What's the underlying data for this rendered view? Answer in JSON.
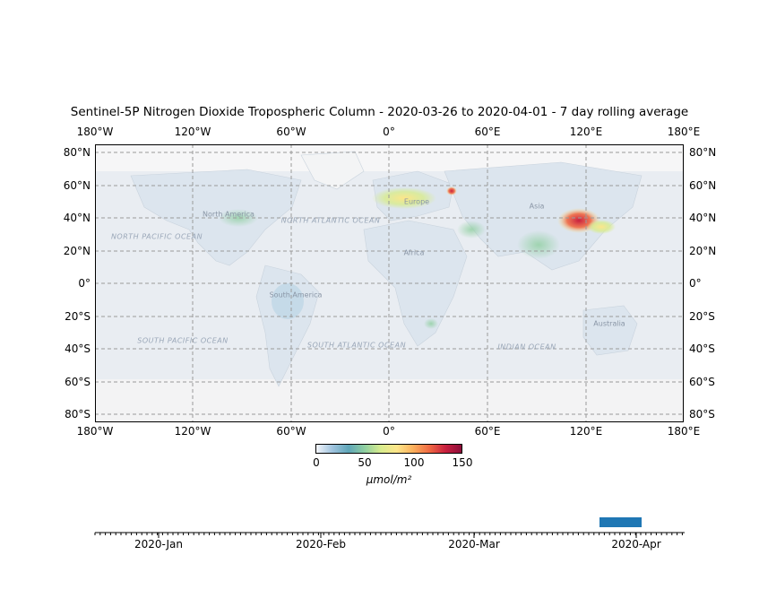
{
  "title": "Sentinel-5P Nitrogen Dioxide Tropospheric Column - 2020-03-26 to 2020-04-01 - 7 day rolling average",
  "map": {
    "lon_ticks": [
      "180°W",
      "120°W",
      "60°W",
      "0°",
      "60°E",
      "120°E",
      "180°E"
    ],
    "lat_ticks": [
      "80°N",
      "60°N",
      "40°N",
      "20°N",
      "0°",
      "20°S",
      "40°S",
      "60°S",
      "80°S"
    ],
    "continent_labels": [
      "North America",
      "South America",
      "Europe",
      "Africa",
      "Asia",
      "Australia"
    ],
    "ocean_labels": [
      "NORTH PACIFIC OCEAN",
      "NORTH ATLANTIC OCEAN",
      "SOUTH PACIFIC OCEAN",
      "SOUTH ATLANTIC OCEAN",
      "INDIAN OCEAN"
    ],
    "colors": {
      "land": "#dfe6ee",
      "ocean": "#eef0f3",
      "ice": "#f8f8f8",
      "grid": "#9a9a9a"
    }
  },
  "colorbar": {
    "ticks": [
      "0",
      "50",
      "100",
      "150"
    ],
    "range": [
      0,
      150
    ],
    "unit_label": "μmol/m²",
    "colormap": [
      "#f4f6fb",
      "#9fc3de",
      "#5fa6b9",
      "#8fcfa0",
      "#d8ec8e",
      "#fde68a",
      "#fbb05c",
      "#f06a43",
      "#c9203f",
      "#8c0d3a"
    ]
  },
  "timeline": {
    "labels": [
      "2020-Jan",
      "2020-Feb",
      "2020-Mar",
      "2020-Apr"
    ],
    "selected_window": "2020-03-26 to 2020-04-01",
    "highlight_color": "#1f77b4"
  }
}
